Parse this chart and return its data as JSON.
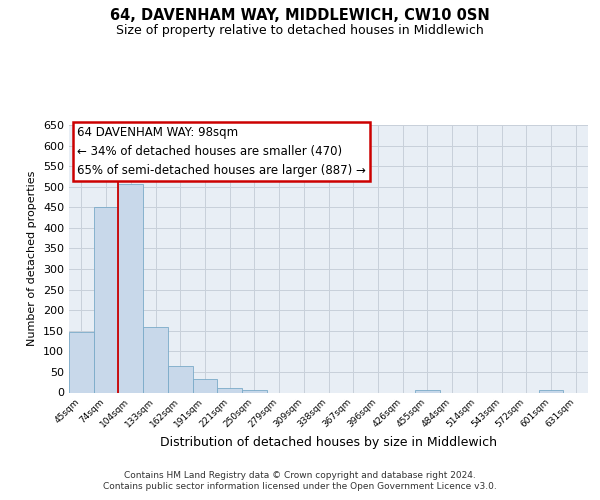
{
  "title": "64, DAVENHAM WAY, MIDDLEWICH, CW10 0SN",
  "subtitle": "Size of property relative to detached houses in Middlewich",
  "xlabel": "Distribution of detached houses by size in Middlewich",
  "ylabel": "Number of detached properties",
  "footnote1": "Contains HM Land Registry data © Crown copyright and database right 2024.",
  "footnote2": "Contains public sector information licensed under the Open Government Licence v3.0.",
  "bar_labels": [
    "45sqm",
    "74sqm",
    "104sqm",
    "133sqm",
    "162sqm",
    "191sqm",
    "221sqm",
    "250sqm",
    "279sqm",
    "309sqm",
    "338sqm",
    "367sqm",
    "396sqm",
    "426sqm",
    "455sqm",
    "484sqm",
    "514sqm",
    "543sqm",
    "572sqm",
    "601sqm",
    "631sqm"
  ],
  "bar_values": [
    148,
    450,
    507,
    160,
    65,
    32,
    12,
    6,
    0,
    0,
    0,
    0,
    0,
    0,
    5,
    0,
    0,
    0,
    0,
    5,
    0
  ],
  "bar_color": "#c8d8ea",
  "bar_edge_color": "#7aaac8",
  "ylim_max": 650,
  "yticks": [
    0,
    50,
    100,
    150,
    200,
    250,
    300,
    350,
    400,
    450,
    500,
    550,
    600,
    650
  ],
  "red_line_color": "#cc0000",
  "red_line_x": 1.5,
  "annotation_title": "64 DAVENHAM WAY: 98sqm",
  "annotation_line1": "← 34% of detached houses are smaller (470)",
  "annotation_line2": "65% of semi-detached houses are larger (887) →",
  "box_facecolor": "#ffffff",
  "box_edgecolor": "#cc0000",
  "grid_color": "#c8d0da",
  "plot_bg_color": "#e8eef5",
  "title_fontsize": 10.5,
  "subtitle_fontsize": 9,
  "ylabel_fontsize": 8,
  "xlabel_fontsize": 9,
  "tick_fontsize": 8,
  "annot_fontsize": 8.5,
  "footnote_fontsize": 6.5
}
